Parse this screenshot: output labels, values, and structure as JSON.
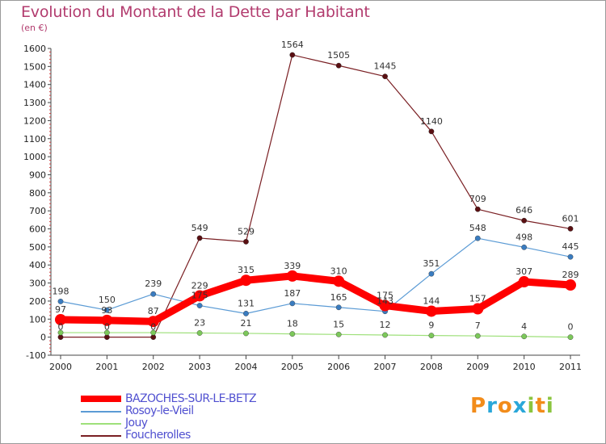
{
  "title": "Evolution du Montant de la Dette par Habitant",
  "subtitle": "(en €)",
  "brand": "Proxiti",
  "brand_colors": [
    "#f28c1a",
    "#2aa7d9",
    "#f28c1a",
    "#2aa7d9",
    "#8bc53f",
    "#f28c1a",
    "#8bc53f"
  ],
  "chart_data": {
    "type": "line",
    "title": "Evolution du Montant de la Dette par Habitant",
    "ylabel": "(en €)",
    "xlabel": "",
    "categories": [
      "2000",
      "2001",
      "2002",
      "2003",
      "2004",
      "2005",
      "2006",
      "2007",
      "2008",
      "2009",
      "2010",
      "2011"
    ],
    "ylim": [
      -100,
      1600
    ],
    "yticks": [
      "-100",
      "0",
      "100",
      "200",
      "300",
      "400",
      "500",
      "600",
      "700",
      "800",
      "900",
      "1000",
      "1100",
      "1200",
      "1300",
      "1400",
      "1500",
      "1600"
    ],
    "grid": false,
    "legend_position": "bottom-left",
    "series": [
      {
        "name": "Foucherolles",
        "color": "#7a1f23",
        "marker": "#5a0f12",
        "width": "thin",
        "values": [
          0,
          0,
          0,
          549,
          529,
          1564,
          1505,
          1445,
          1140,
          709,
          646,
          601
        ],
        "labels": [
          "0",
          "0",
          "0",
          "549",
          "529",
          "1564",
          "1505",
          "1445",
          "1140",
          "709",
          "646",
          "601"
        ]
      },
      {
        "name": "Jouy",
        "color": "#9ee07a",
        "marker": "#7cc85a",
        "width": "thin",
        "values": [
          25,
          25,
          25,
          23,
          21,
          18,
          15,
          12,
          9,
          7,
          4,
          0
        ],
        "labels": [
          "",
          "",
          "",
          "23",
          "21",
          "18",
          "15",
          "12",
          "9",
          "7",
          "4",
          "0"
        ]
      },
      {
        "name": "Rosoy-le-Vieil",
        "color": "#5b9bd5",
        "marker": "#3a7cc0",
        "width": "thin",
        "values": [
          198,
          150,
          239,
          175,
          131,
          187,
          165,
          143,
          351,
          548,
          498,
          445
        ],
        "labels": [
          "198",
          "150",
          "239",
          "175",
          "131",
          "187",
          "165",
          "143",
          "351",
          "548",
          "498",
          "445"
        ]
      },
      {
        "name": "BAZOCHES-SUR-LE-BETZ",
        "color": "#ff0000",
        "marker": "#ff0000",
        "width": "thick",
        "values": [
          97,
          93,
          87,
          229,
          315,
          339,
          310,
          175,
          144,
          157,
          307,
          289
        ],
        "labels": [
          "97",
          "93",
          "87",
          "229",
          "315",
          "339",
          "310",
          "175",
          "144",
          "157",
          "307",
          "289"
        ]
      }
    ]
  },
  "legend": [
    {
      "name": "BAZOCHES-SUR-LE-BETZ",
      "color": "#ff0000",
      "width": "thick"
    },
    {
      "name": "Rosoy-le-Vieil",
      "color": "#5b9bd5",
      "width": "thin"
    },
    {
      "name": "Jouy",
      "color": "#9ee07a",
      "width": "thin"
    },
    {
      "name": "Foucherolles",
      "color": "#7a1f23",
      "width": "thin"
    }
  ]
}
